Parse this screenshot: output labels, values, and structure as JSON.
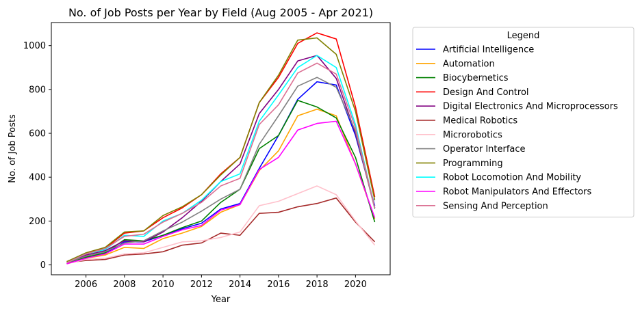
{
  "chart_data": {
    "type": "line",
    "title": "No. of Job Posts per Year by Field (Aug 2005 - Apr 2021)",
    "xlabel": "Year",
    "ylabel": "No. of Job Posts",
    "x": [
      2005,
      2006,
      2007,
      2008,
      2009,
      2010,
      2011,
      2012,
      2013,
      2014,
      2015,
      2016,
      2017,
      2018,
      2019,
      2020,
      2021
    ],
    "xticks": [
      2006,
      2008,
      2010,
      2012,
      2014,
      2016,
      2018,
      2020
    ],
    "yticks": [
      0,
      200,
      400,
      600,
      800,
      1000
    ],
    "xlim": [
      2004.2,
      2021.8
    ],
    "ylim": [
      -45,
      1105
    ],
    "grid": false,
    "legend": {
      "title": "Legend",
      "placement": "right-outside"
    },
    "series": [
      {
        "name": "Artificial Intelligence",
        "color": "#0000ff",
        "values": [
          10,
          35,
          50,
          105,
          105,
          135,
          165,
          190,
          255,
          280,
          440,
          590,
          755,
          835,
          820,
          590,
          270
        ]
      },
      {
        "name": "Automation",
        "color": "#ffa500",
        "values": [
          5,
          30,
          45,
          80,
          75,
          120,
          145,
          175,
          240,
          275,
          430,
          520,
          680,
          710,
          680,
          460,
          210
        ]
      },
      {
        "name": "Biocybernetics",
        "color": "#008000",
        "values": [
          5,
          35,
          55,
          115,
          110,
          135,
          170,
          200,
          285,
          345,
          530,
          590,
          750,
          720,
          670,
          490,
          195
        ]
      },
      {
        "name": "Design And Control",
        "color": "#ff0000",
        "values": [
          15,
          50,
          75,
          145,
          155,
          215,
          260,
          320,
          415,
          490,
          740,
          855,
          1010,
          1058,
          1030,
          720,
          310
        ]
      },
      {
        "name": "Digital Electronics And Microprocessors",
        "color": "#800080",
        "values": [
          10,
          45,
          65,
          110,
          105,
          150,
          215,
          290,
          380,
          460,
          690,
          800,
          930,
          955,
          850,
          600,
          260
        ]
      },
      {
        "name": "Medical Robotics",
        "color": "#a52a2a",
        "values": [
          10,
          20,
          25,
          45,
          50,
          60,
          90,
          100,
          145,
          135,
          235,
          240,
          265,
          280,
          305,
          195,
          105
        ]
      },
      {
        "name": "Microrobotics",
        "color": "#ffc0cb",
        "values": [
          5,
          25,
          30,
          50,
          55,
          80,
          105,
          110,
          125,
          150,
          270,
          290,
          325,
          360,
          320,
          200,
          90
        ]
      },
      {
        "name": "Operator Interface",
        "color": "#808080",
        "values": [
          10,
          40,
          60,
          100,
          110,
          155,
          195,
          245,
          300,
          345,
          550,
          680,
          815,
          855,
          810,
          610,
          255
        ]
      },
      {
        "name": "Programming",
        "color": "#808000",
        "values": [
          15,
          55,
          80,
          150,
          155,
          225,
          265,
          320,
          410,
          490,
          740,
          865,
          1025,
          1035,
          960,
          700,
          295
        ]
      },
      {
        "name": "Robot Locomotion And Mobility",
        "color": "#00ffff",
        "values": [
          10,
          50,
          70,
          135,
          130,
          200,
          235,
          295,
          380,
          415,
          655,
          775,
          900,
          955,
          900,
          640,
          260
        ]
      },
      {
        "name": "Robot Manipulators And Effectors",
        "color": "#ff00ff",
        "values": [
          5,
          30,
          50,
          95,
          95,
          130,
          160,
          180,
          250,
          275,
          435,
          490,
          615,
          645,
          655,
          460,
          215
        ]
      },
      {
        "name": "Sensing And Perception",
        "color": "#db7093",
        "values": [
          10,
          50,
          75,
          130,
          140,
          195,
          235,
          285,
          360,
          395,
          640,
          730,
          875,
          920,
          870,
          625,
          260
        ]
      }
    ]
  }
}
